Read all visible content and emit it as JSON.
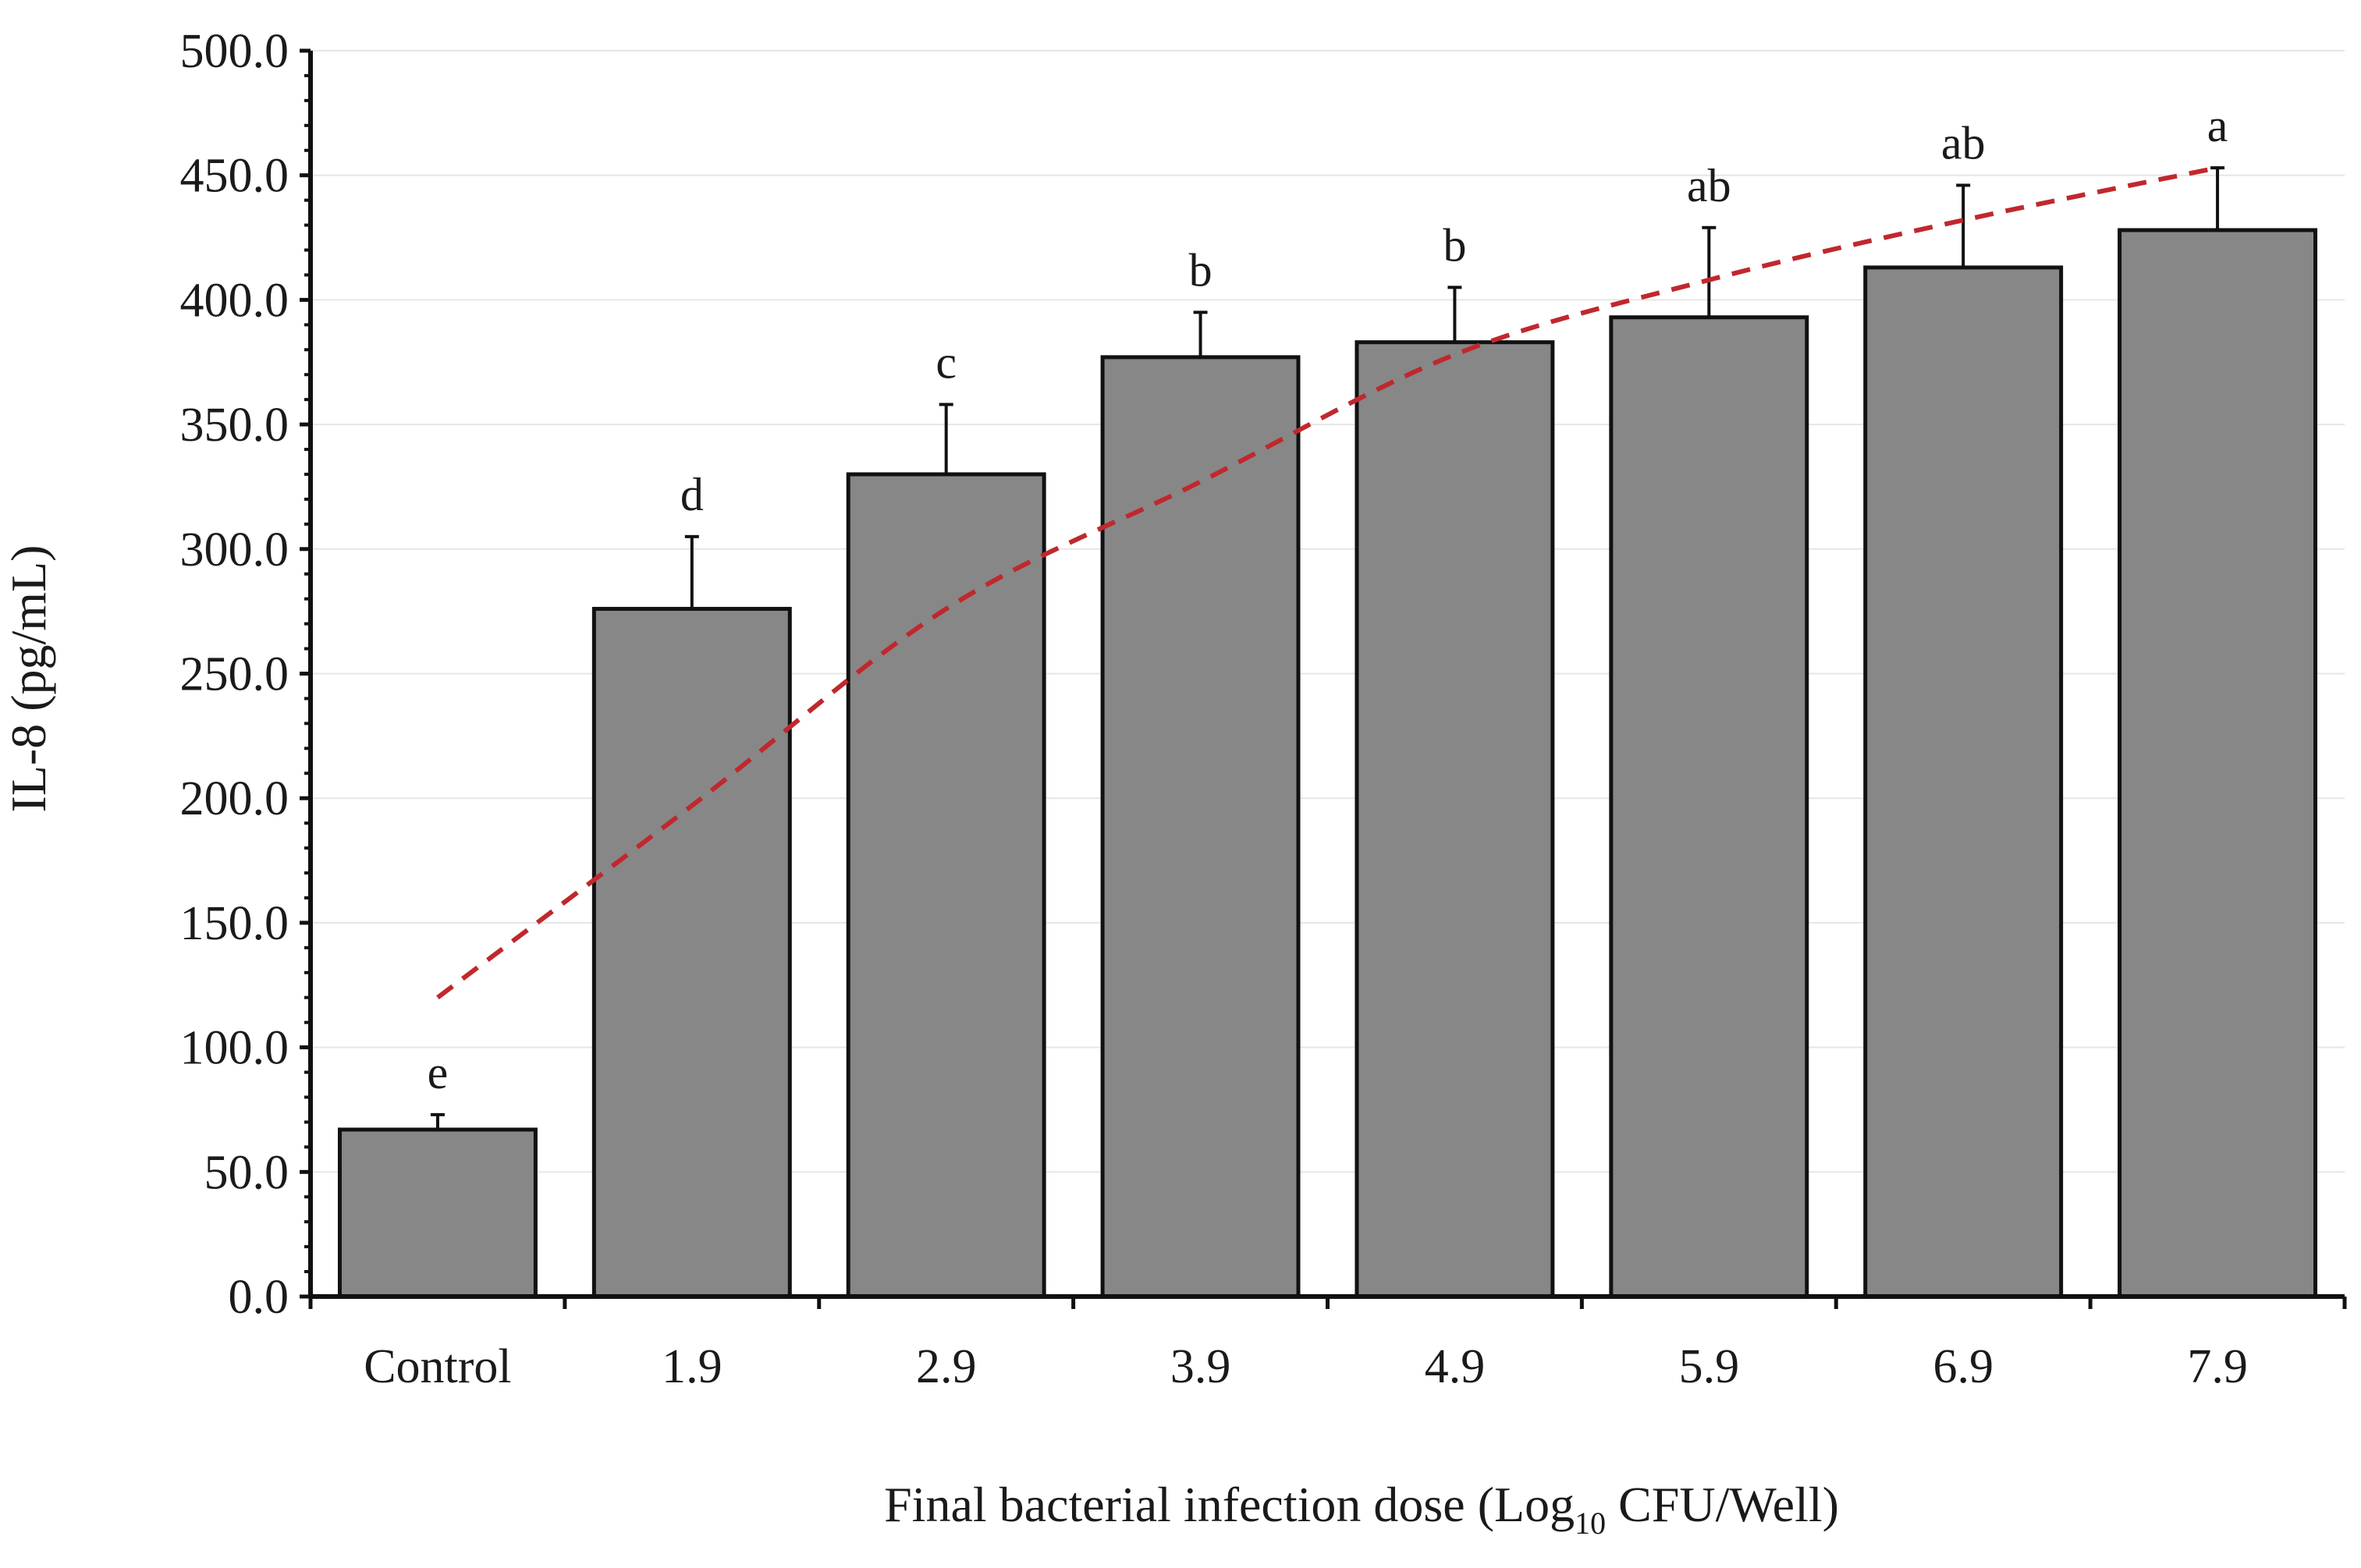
{
  "chart_data": {
    "type": "bar",
    "title": "",
    "xlabel": {
      "prefix": "Final bacterial infection dose (Log",
      "subscript": "10",
      "suffix": " CFU/Well)"
    },
    "ylabel": "IL-8 (pg/mL)",
    "categories": [
      "Control",
      "1.9",
      "2.9",
      "3.9",
      "4.9",
      "5.9",
      "6.9",
      "7.9"
    ],
    "values": [
      67,
      276,
      330,
      377,
      383,
      393,
      413,
      428
    ],
    "errors": [
      6,
      29,
      28,
      18,
      22,
      36,
      33,
      25
    ],
    "significance_letters": [
      "e",
      "d",
      "c",
      "b",
      "b",
      "ab",
      "ab",
      "a"
    ],
    "ylim": [
      0,
      500
    ],
    "yticks": [
      0,
      50,
      100,
      150,
      200,
      250,
      300,
      350,
      400,
      450,
      500
    ],
    "ytick_labels": [
      "0.0",
      "50.0",
      "100.0",
      "150.0",
      "200.0",
      "250.0",
      "300.0",
      "350.0",
      "400.0",
      "450.0",
      "500.0"
    ],
    "trendline": {
      "style": "dashed",
      "kind": "logarithmic",
      "points": [
        {
          "category_index": 0,
          "y": 120
        },
        {
          "category_index": 1,
          "y": 197
        },
        {
          "category_index": 2,
          "y": 276
        },
        {
          "category_index": 3,
          "y": 327
        },
        {
          "category_index": 4,
          "y": 378
        },
        {
          "category_index": 5,
          "y": 408
        },
        {
          "category_index": 6,
          "y": 432
        },
        {
          "category_index": 7,
          "y": 453
        }
      ]
    },
    "grid": true,
    "colors": {
      "bar_fill": "#878787",
      "bar_stroke": "#111111",
      "trendline": "#c0282d",
      "axis": "#111111",
      "grid": "#e6e6e6"
    }
  }
}
